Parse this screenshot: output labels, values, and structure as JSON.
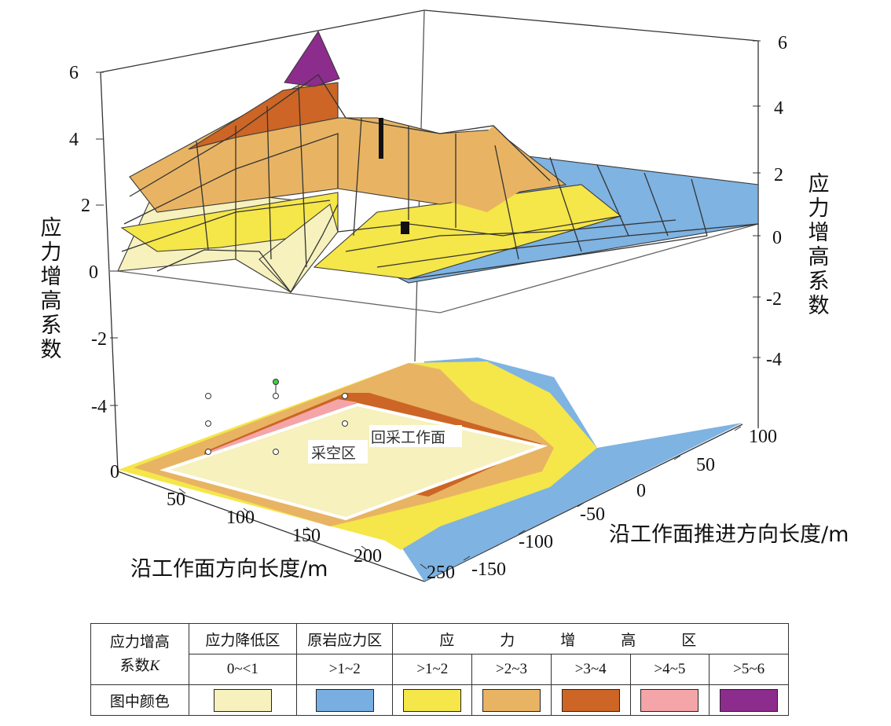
{
  "chart_data": {
    "type": "surface3d",
    "z_axis": {
      "label": "应力增高系数",
      "upper_ticks_left": [
        "6",
        "4",
        "2",
        "0"
      ],
      "lower_ticks_left": [
        "-2",
        "-4",
        "0"
      ],
      "ticks_right": [
        "6",
        "4",
        "2",
        "0",
        "-2",
        "-4"
      ]
    },
    "x_axis": {
      "label": "沿工作面方向长度/m",
      "ticks": [
        "50",
        "100",
        "150",
        "200",
        "250"
      ]
    },
    "y_axis": {
      "label": "沿工作面推进方向长度/m",
      "ticks": [
        "100",
        "50",
        "0",
        "-50",
        "-100",
        "-150"
      ]
    },
    "annotations": {
      "goaf": "采空区",
      "face": "回采工作面"
    },
    "zones": [
      {
        "name": "应力降低区",
        "range": "0~<1",
        "color": "#f6f1bd"
      },
      {
        "name": "原岩应力区",
        "range": ">1~2",
        "color": "#78aee0"
      },
      {
        "name": "应力增高区",
        "range": ">1~2",
        "color": "#f5e649"
      },
      {
        "name": "应力增高区",
        "range": ">2~3",
        "color": "#e8b463"
      },
      {
        "name": "应力增高区",
        "range": ">3~4",
        "color": "#cc6525"
      },
      {
        "name": "应力增高区",
        "range": ">4~5",
        "color": "#f4a5a8"
      },
      {
        "name": "应力增高区",
        "range": ">5~6",
        "color": "#8c2c8d"
      }
    ],
    "peak_values": {
      "side_abutment_max": 6,
      "front_abutment_max": 3.5,
      "far_field": 1.2
    }
  },
  "legend": {
    "header_label": "应力增高",
    "header_label2": "系数",
    "header_k": "K",
    "color_row_label": "图中颜色",
    "cat_reduce": "应力降低区",
    "cat_virgin": "原岩应力区",
    "cat_increase": "应力增高区"
  }
}
